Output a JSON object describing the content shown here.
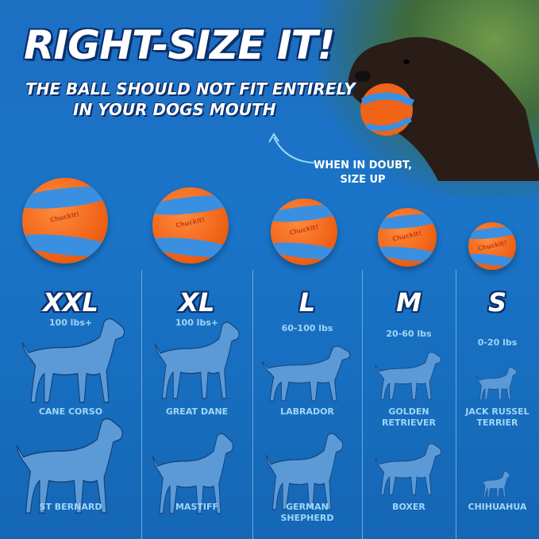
{
  "headline": "RIGHT-SIZE IT!",
  "subline1": "THE BALL SHOULD NOT FIT ENTIRELY",
  "subline2": "IN YOUR DOGS MOUTH",
  "tip1": "WHEN IN DOUBT,",
  "tip2": "SIZE UP",
  "ball_logo": "Chuckit!",
  "colors": {
    "background": "#1a6fc2",
    "ball_orange": "#f06418",
    "ball_stripe": "#3b8fe0",
    "silhouette": "#5b9ad6",
    "label": "#9fd6f7"
  },
  "sizes": [
    {
      "size": "XXL",
      "weight": "100 lbs+",
      "breeds": [
        "CANE CORSO",
        "ST BERNARD"
      ]
    },
    {
      "size": "XL",
      "weight": "100 lbs+",
      "breeds": [
        "GREAT DANE",
        "MASTIFF"
      ]
    },
    {
      "size": "L",
      "weight": "60-100 lbs",
      "breeds": [
        "LABRADOR",
        "GERMAN SHEPHERD"
      ]
    },
    {
      "size": "M",
      "weight": "20-60 lbs",
      "breeds": [
        "GOLDEN RETRIEVER",
        "BOXER"
      ]
    },
    {
      "size": "S",
      "weight": "0-20 lbs",
      "breeds": [
        "JACK RUSSEL TERRIER",
        "CHIHUAHUA"
      ]
    }
  ]
}
